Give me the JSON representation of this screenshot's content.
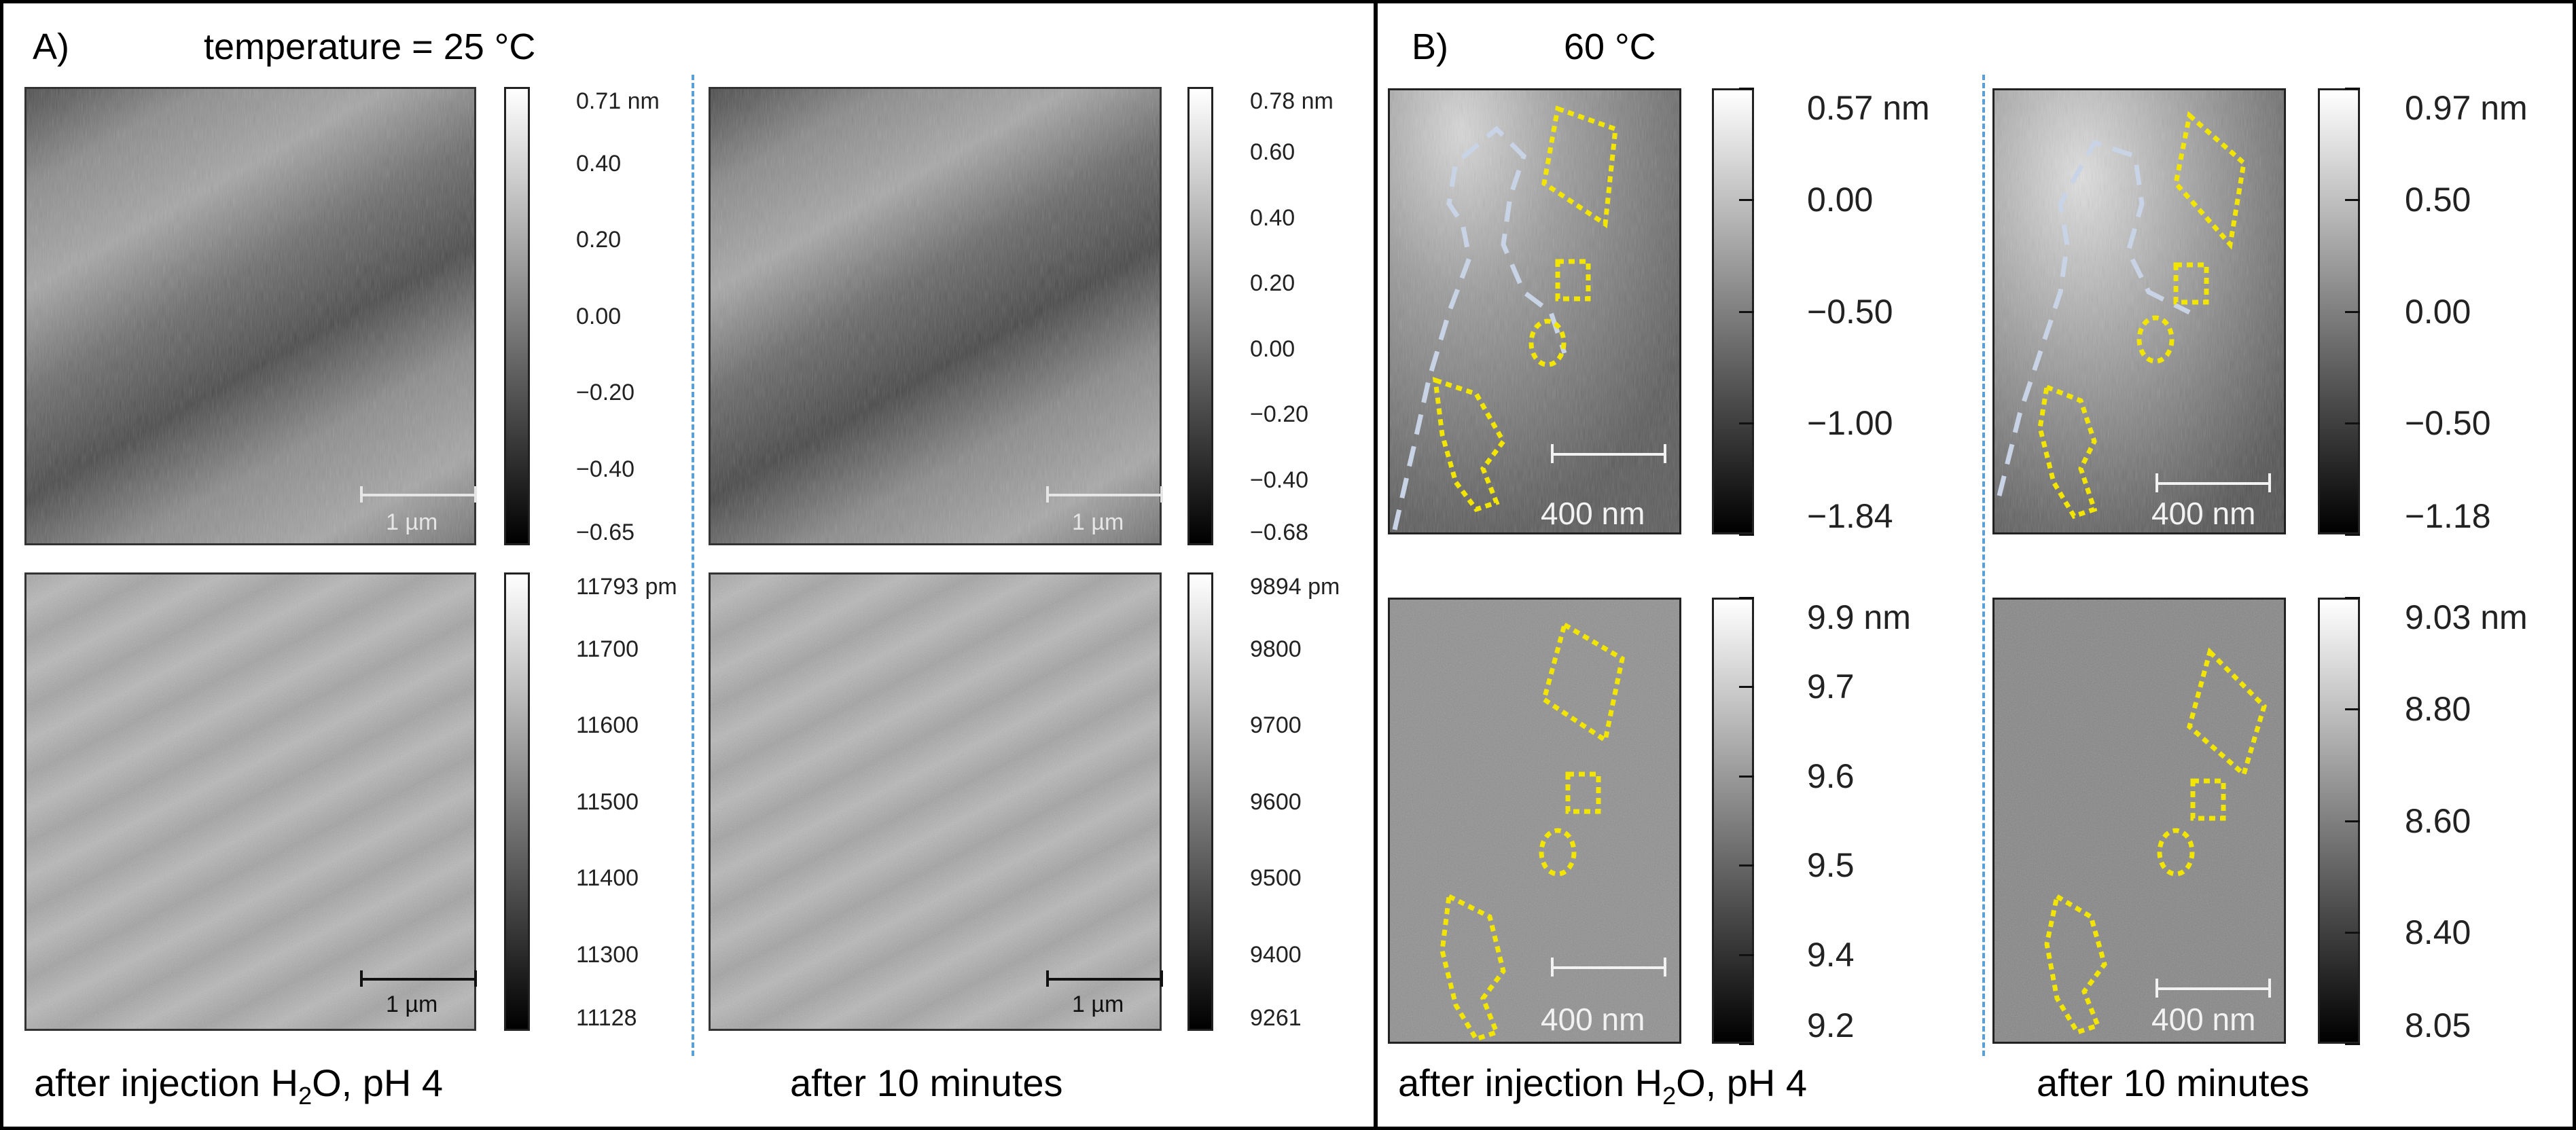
{
  "panel_a": {
    "label": "A)",
    "title": "temperature = 25 °C",
    "images": [
      {
        "id": "a-top-left",
        "type": "topo",
        "scalebar": "1 µm",
        "colorbar": [
          "0.71 nm",
          "0.40",
          "0.20",
          "0.00",
          "−0.20",
          "−0.40",
          "−0.65"
        ]
      },
      {
        "id": "a-top-right",
        "type": "topo",
        "scalebar": "1 µm",
        "colorbar": [
          "0.78 nm",
          "0.60",
          "0.40",
          "0.20",
          "0.00",
          "−0.20",
          "−0.40",
          "−0.68"
        ]
      },
      {
        "id": "a-bottom-left",
        "type": "phase",
        "scalebar": "1 µm",
        "colorbar": [
          "11793 pm",
          "11700",
          "11600",
          "11500",
          "11400",
          "11300",
          "11128"
        ]
      },
      {
        "id": "a-bottom-right",
        "type": "phase",
        "scalebar": "1 µm",
        "colorbar": [
          "9894 pm",
          "9800",
          "9700",
          "9600",
          "9500",
          "9400",
          "9261"
        ]
      }
    ],
    "caption_left_main": "after injection H",
    "caption_left_sub": "2",
    "caption_left_tail": "O, pH 4",
    "caption_right": "after 10 minutes"
  },
  "panel_b": {
    "label": "B)",
    "title": "60 °C",
    "images": [
      {
        "id": "b-top-left",
        "type": "topo",
        "scalebar": "400 nm",
        "colorbar": [
          "0.57 nm",
          "0.00",
          "−0.50",
          "−1.00",
          "−1.84"
        ]
      },
      {
        "id": "b-top-right",
        "type": "topo",
        "scalebar": "400 nm",
        "colorbar": [
          "0.97 nm",
          "0.50",
          "0.00",
          "−0.50",
          "−1.18"
        ]
      },
      {
        "id": "b-bottom-left",
        "type": "phase",
        "scalebar": "400 nm",
        "colorbar": [
          "9.9 nm",
          "9.7",
          "9.6",
          "9.5",
          "9.4",
          "9.2"
        ]
      },
      {
        "id": "b-bottom-right",
        "type": "phase",
        "scalebar": "400 nm",
        "colorbar": [
          "9.03 nm",
          "8.80",
          "8.60",
          "8.40",
          "8.05"
        ]
      }
    ],
    "caption_left_main": "after injection H",
    "caption_left_sub": "2",
    "caption_left_tail": "O, pH 4",
    "caption_right": "after 10 minutes"
  },
  "colors": {
    "frame": "#000000",
    "divider": "#5a9fd6",
    "outline_yellow": "#f2e600",
    "outline_dashed": "#c8d4e6"
  }
}
